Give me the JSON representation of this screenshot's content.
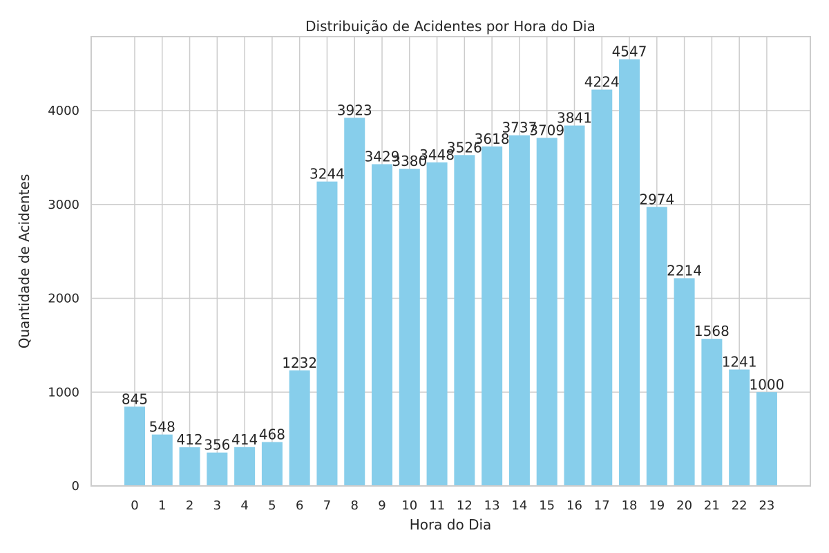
{
  "chart_data": {
    "type": "bar",
    "title": "Distribuição de Acidentes por Hora do Dia",
    "xlabel": "Hora do Dia",
    "ylabel": "Quantidade de Acidentes",
    "categories": [
      "0",
      "1",
      "2",
      "3",
      "4",
      "5",
      "6",
      "7",
      "8",
      "9",
      "10",
      "11",
      "12",
      "13",
      "14",
      "15",
      "16",
      "17",
      "18",
      "19",
      "20",
      "21",
      "22",
      "23"
    ],
    "values": [
      845,
      548,
      412,
      356,
      414,
      468,
      1232,
      3244,
      3923,
      3429,
      3380,
      3448,
      3526,
      3618,
      3737,
      3709,
      3841,
      4224,
      4547,
      2974,
      2214,
      1568,
      1241,
      1000
    ],
    "data_labels": [
      "845",
      "548",
      "412",
      "356",
      "414",
      "468",
      "1232",
      "3244",
      "3923",
      "3429",
      "3380",
      "3448",
      "3526",
      "3618",
      "3737",
      "3709",
      "3841",
      "4224",
      "4547",
      "2974",
      "2214",
      "1568",
      "1241",
      "1000"
    ],
    "ylim": [
      0,
      4800
    ],
    "yticks": [
      0,
      1000,
      2000,
      3000,
      4000
    ],
    "ytick_labels": [
      "0",
      "1000",
      "2000",
      "3000",
      "4000"
    ],
    "grid": true,
    "bar_color": "#87ceeb"
  }
}
